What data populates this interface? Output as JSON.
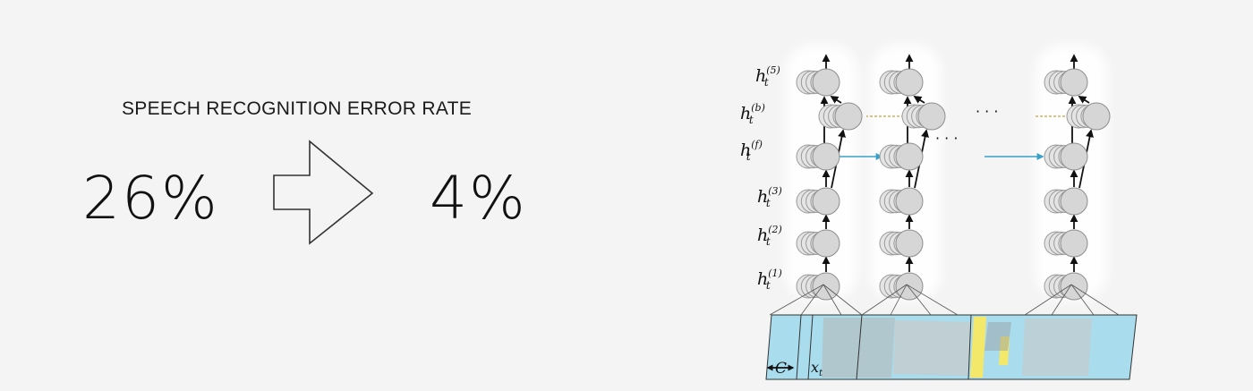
{
  "slide": {
    "heading": "SPEECH RECOGNITION ERROR RATE",
    "before_value": "26%",
    "after_value": "4%"
  },
  "diagram": {
    "layer_labels": [
      {
        "base": "h",
        "sub": "t",
        "sup": "(5)"
      },
      {
        "base": "h",
        "sub": "t",
        "sup": "(b)"
      },
      {
        "base": "h",
        "sub": "t",
        "sup": "(f)"
      },
      {
        "base": "h",
        "sub": "t",
        "sup": "(3)"
      },
      {
        "base": "h",
        "sub": "t",
        "sup": "(2)"
      },
      {
        "base": "h",
        "sub": "t",
        "sup": "(1)"
      }
    ],
    "ellipsis": "· · ·",
    "context_label": "C",
    "input_label": {
      "base": "x",
      "sub": "t"
    },
    "colors": {
      "node_fill": "#e4e4e4",
      "node_stroke": "#9a9a9a",
      "recurrent_arrow": "#3aa0c8",
      "spectrogram_blue": "#a9dcec",
      "spectrogram_gray": "#c9c9c9",
      "spectrogram_yellow": "#f4e86a"
    }
  }
}
